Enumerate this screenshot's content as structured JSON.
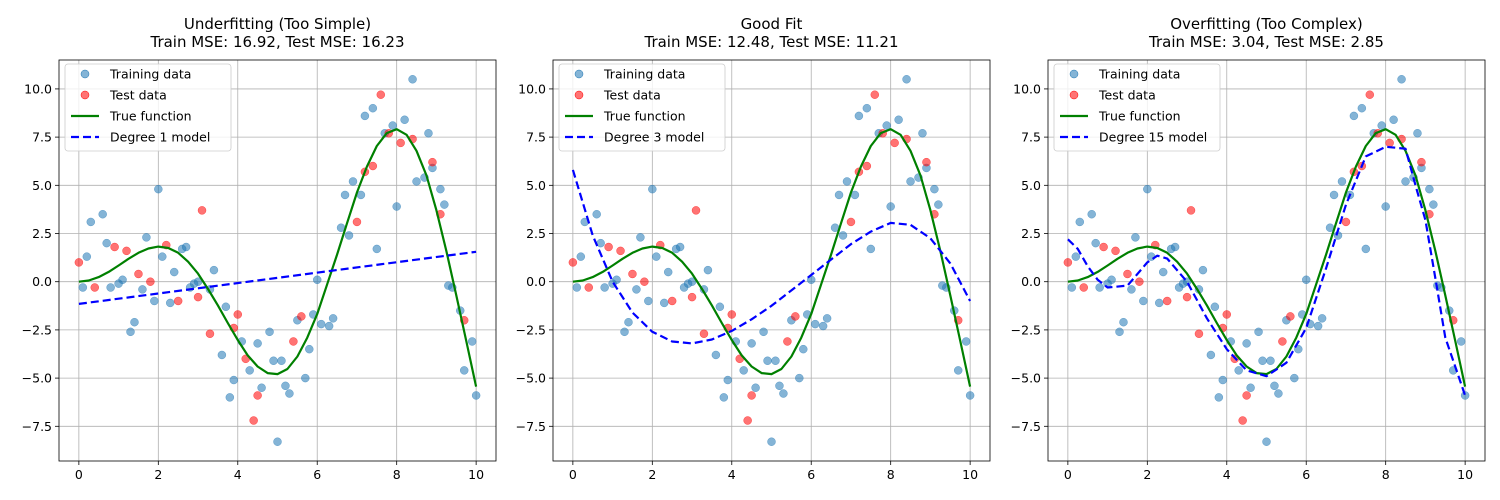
{
  "chart_data": [
    {
      "type": "scatter",
      "title": "Underfitting (Too Simple)",
      "subtitle": "Train MSE: 16.92, Test MSE: 16.23",
      "xlim": [
        -0.5,
        10.5
      ],
      "ylim": [
        -9.3,
        11.5
      ],
      "xticks": [
        0,
        2,
        4,
        6,
        8,
        10
      ],
      "yticks": [
        -7.5,
        -5.0,
        -2.5,
        0.0,
        2.5,
        5.0,
        7.5,
        10.0
      ],
      "xtick_labels": [
        "0",
        "2",
        "4",
        "6",
        "8",
        "10"
      ],
      "ytick_labels": [
        "−7.5",
        "−5.0",
        "−2.5",
        "0.0",
        "2.5",
        "5.0",
        "7.5",
        "10.0"
      ],
      "grid": true,
      "legend_position": "top-left",
      "legend": [
        "Training data",
        "Test data",
        "True function",
        "Degree 1 model"
      ],
      "model_degree": 1,
      "model_curve": {
        "x": [
          0,
          10
        ],
        "y": [
          -1.15,
          1.55
        ]
      }
    },
    {
      "type": "scatter",
      "title": "Good Fit",
      "subtitle": "Train MSE: 12.48, Test MSE: 11.21",
      "xlim": [
        -0.5,
        10.5
      ],
      "ylim": [
        -9.3,
        11.5
      ],
      "xticks": [
        0,
        2,
        4,
        6,
        8,
        10
      ],
      "yticks": [
        -7.5,
        -5.0,
        -2.5,
        0.0,
        2.5,
        5.0,
        7.5,
        10.0
      ],
      "xtick_labels": [
        "0",
        "2",
        "4",
        "6",
        "8",
        "10"
      ],
      "ytick_labels": [
        "−7.5",
        "−5.0",
        "−2.5",
        "0.0",
        "2.5",
        "5.0",
        "7.5",
        "10.0"
      ],
      "grid": true,
      "legend_position": "top-left",
      "legend": [
        "Training data",
        "Test data",
        "True function",
        "Degree 3 model"
      ],
      "model_degree": 3,
      "model_curve": {
        "x": [
          0,
          0.5,
          1,
          1.5,
          2,
          2.5,
          3,
          3.5,
          4,
          4.5,
          5,
          5.5,
          6,
          6.5,
          7,
          7.5,
          8,
          8.5,
          9,
          9.5,
          10
        ],
        "y": [
          5.8,
          2.4,
          0.0,
          -1.6,
          -2.6,
          -3.1,
          -3.2,
          -3.0,
          -2.55,
          -1.95,
          -1.25,
          -0.45,
          0.35,
          1.15,
          1.95,
          2.6,
          3.05,
          2.95,
          2.25,
          0.95,
          -1.0
        ]
      }
    },
    {
      "type": "scatter",
      "title": "Overfitting (Too Complex)",
      "subtitle": "Train MSE: 3.04, Test MSE: 2.85",
      "xlim": [
        -0.5,
        10.5
      ],
      "ylim": [
        -9.3,
        11.5
      ],
      "xticks": [
        0,
        2,
        4,
        6,
        8,
        10
      ],
      "yticks": [
        -7.5,
        -5.0,
        -2.5,
        0.0,
        2.5,
        5.0,
        7.5,
        10.0
      ],
      "xtick_labels": [
        "0",
        "2",
        "4",
        "6",
        "8",
        "10"
      ],
      "ytick_labels": [
        "−7.5",
        "−5.0",
        "−2.5",
        "0.0",
        "2.5",
        "5.0",
        "7.5",
        "10.0"
      ],
      "grid": true,
      "legend_position": "top-left",
      "legend": [
        "Training data",
        "Test data",
        "True function",
        "Degree 15 model"
      ],
      "model_degree": 15,
      "model_curve": {
        "x": [
          0,
          0.25,
          0.5,
          0.75,
          1,
          1.5,
          2,
          2.25,
          2.5,
          3,
          3.5,
          4,
          4.5,
          5,
          5.5,
          6,
          6.5,
          7,
          7.5,
          8,
          8.5,
          8.75,
          9,
          9.25,
          9.5,
          9.75,
          10
        ],
        "y": [
          2.2,
          1.7,
          0.8,
          0.1,
          -0.3,
          -0.2,
          1.0,
          1.35,
          1.2,
          0.0,
          -1.9,
          -3.5,
          -4.6,
          -4.9,
          -4.2,
          -2.4,
          0.7,
          4.0,
          6.5,
          7.0,
          6.9,
          5.0,
          3.2,
          0.2,
          -2.9,
          -4.4,
          -5.9
        ]
      }
    }
  ],
  "true_function": {
    "x": [
      0,
      0.25,
      0.5,
      0.75,
      1,
      1.25,
      1.5,
      1.75,
      2,
      2.25,
      2.5,
      2.75,
      3,
      3.25,
      3.5,
      3.75,
      4,
      4.25,
      4.5,
      4.75,
      5,
      5.25,
      5.5,
      5.75,
      6,
      6.25,
      6.5,
      6.75,
      7,
      7.25,
      7.5,
      7.75,
      8,
      8.25,
      8.5,
      8.75,
      9,
      9.25,
      9.5,
      9.75,
      10
    ],
    "y": [
      0.0,
      0.06,
      0.24,
      0.51,
      0.84,
      1.19,
      1.5,
      1.72,
      1.82,
      1.75,
      1.5,
      1.04,
      0.42,
      -0.38,
      -1.23,
      -2.14,
      -3.03,
      -3.82,
      -4.4,
      -4.74,
      -4.79,
      -4.53,
      -3.88,
      -2.9,
      -1.68,
      -0.13,
      1.41,
      3.03,
      4.63,
      5.97,
      7.04,
      7.71,
      7.91,
      7.62,
      6.79,
      5.51,
      3.71,
      1.61,
      -0.71,
      -3.06,
      -5.44
    ]
  },
  "training_data": {
    "x": [
      0.1,
      0.2,
      0.3,
      0.6,
      0.7,
      0.8,
      1.0,
      1.1,
      1.3,
      1.4,
      1.6,
      1.7,
      1.9,
      2.0,
      2.1,
      2.3,
      2.4,
      2.6,
      2.7,
      2.8,
      2.9,
      3.0,
      3.3,
      3.4,
      3.6,
      3.7,
      3.8,
      3.9,
      4.1,
      4.3,
      4.5,
      4.6,
      4.8,
      4.9,
      5.0,
      5.1,
      5.2,
      5.3,
      5.5,
      5.7,
      5.8,
      5.9,
      6.0,
      6.1,
      6.3,
      6.4,
      6.6,
      6.7,
      6.8,
      6.9,
      7.1,
      7.2,
      7.4,
      7.5,
      7.7,
      7.9,
      8.0,
      8.2,
      8.4,
      8.5,
      8.7,
      8.8,
      8.9,
      9.1,
      9.2,
      9.3,
      9.4,
      9.6,
      9.7,
      9.9,
      10.0
    ],
    "y": [
      -0.3,
      1.3,
      3.1,
      3.5,
      2.0,
      -0.3,
      -0.1,
      0.1,
      -2.6,
      -2.1,
      -0.4,
      2.3,
      -1.0,
      4.8,
      1.3,
      -1.1,
      0.5,
      1.7,
      1.8,
      -0.3,
      -0.1,
      0.0,
      -0.4,
      0.6,
      -3.8,
      -1.3,
      -6.0,
      -5.1,
      -3.1,
      -4.6,
      -3.2,
      -5.5,
      -2.6,
      -4.1,
      -8.3,
      -4.1,
      -5.4,
      -5.8,
      -2.0,
      -5.0,
      -3.5,
      -1.7,
      0.1,
      -2.2,
      -2.3,
      -1.9,
      2.8,
      4.5,
      2.4,
      5.2,
      4.5,
      8.6,
      9.0,
      1.7,
      7.7,
      8.1,
      3.9,
      8.4,
      10.5,
      5.2,
      5.4,
      7.7,
      5.9,
      4.8,
      4.0,
      -0.2,
      -0.3,
      -1.5,
      -4.6,
      -3.1,
      -5.9
    ]
  },
  "test_data": {
    "x": [
      0.0,
      0.4,
      0.9,
      1.2,
      1.5,
      1.8,
      2.2,
      2.5,
      3.0,
      3.1,
      3.3,
      3.9,
      4.0,
      4.2,
      4.4,
      4.5,
      5.4,
      5.6,
      7.0,
      7.2,
      7.4,
      7.6,
      7.8,
      8.1,
      8.4,
      8.9,
      9.1,
      9.7
    ],
    "y": [
      1.0,
      -0.3,
      1.8,
      1.6,
      0.4,
      0.0,
      1.9,
      -1.0,
      -0.8,
      3.7,
      -2.7,
      -2.4,
      -1.7,
      -4.0,
      -7.2,
      -5.9,
      -3.1,
      -1.8,
      3.1,
      5.7,
      6.0,
      9.7,
      7.7,
      7.2,
      7.4,
      6.2,
      3.5,
      -2.0
    ]
  },
  "colors": {
    "training": "#1f77b4",
    "test": "#ff0000",
    "true_function": "#008000",
    "model": "#0000ff",
    "grid": "#b0b0b0"
  }
}
